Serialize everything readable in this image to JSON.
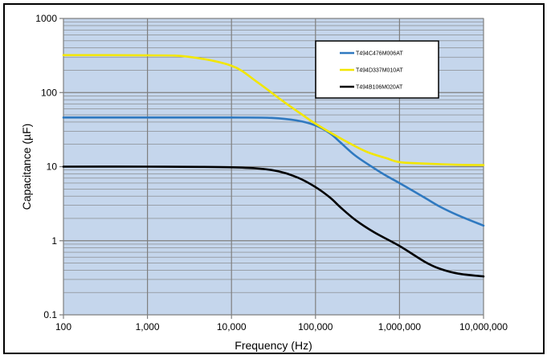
{
  "chart_data": {
    "type": "line",
    "title": "",
    "xlabel": "Frequency (Hz)",
    "ylabel": "Capacitance  (µF)",
    "x_scale": "log",
    "y_scale": "log",
    "xlim": [
      100,
      10000000
    ],
    "ylim": [
      0.1,
      1000
    ],
    "x_ticks": [
      100,
      1000,
      10000,
      100000,
      1000000,
      10000000
    ],
    "x_tick_labels": [
      "100",
      "1,000",
      "10,000",
      "100,000",
      "1,000,000",
      "10,000,000"
    ],
    "y_ticks": [
      0.1,
      1,
      10,
      100,
      1000
    ],
    "y_tick_labels": [
      "0.1",
      "1",
      "10",
      "100",
      "1000"
    ],
    "grid": true,
    "legend_position": "top-right",
    "colors": {
      "plot_bg": "#c5d6ec",
      "grid": "#7f7f7f"
    },
    "series": [
      {
        "name": "T494C476M006AT",
        "color": "#2f79c0",
        "x": [
          100,
          1000,
          10000,
          30000,
          60000,
          100000,
          150000,
          200000,
          300000,
          500000,
          700000,
          1000000,
          2000000,
          3000000,
          5000000,
          10000000
        ],
        "y": [
          46,
          46,
          46,
          45.5,
          42,
          36,
          28,
          21,
          14,
          9.5,
          7.5,
          6,
          3.8,
          2.9,
          2.2,
          1.6
        ]
      },
      {
        "name": "T494D337M010AT",
        "color": "#f2e600",
        "x": [
          100,
          1000,
          3000,
          10000,
          20000,
          40000,
          70000,
          100000,
          200000,
          400000,
          700000,
          1000000,
          2000000,
          5000000,
          10000000
        ],
        "y": [
          320,
          318,
          305,
          230,
          140,
          78,
          50,
          38,
          24,
          16,
          13,
          11.5,
          11,
          10.6,
          10.5
        ]
      },
      {
        "name": "T494B106M020AT",
        "color": "#000000",
        "x": [
          100,
          1000,
          10000,
          30000,
          60000,
          100000,
          150000,
          200000,
          300000,
          500000,
          1000000,
          2000000,
          3000000,
          5000000,
          10000000
        ],
        "y": [
          10,
          10,
          9.8,
          9.0,
          7.2,
          5.3,
          3.8,
          2.8,
          1.9,
          1.3,
          0.85,
          0.52,
          0.42,
          0.36,
          0.33
        ]
      }
    ]
  }
}
